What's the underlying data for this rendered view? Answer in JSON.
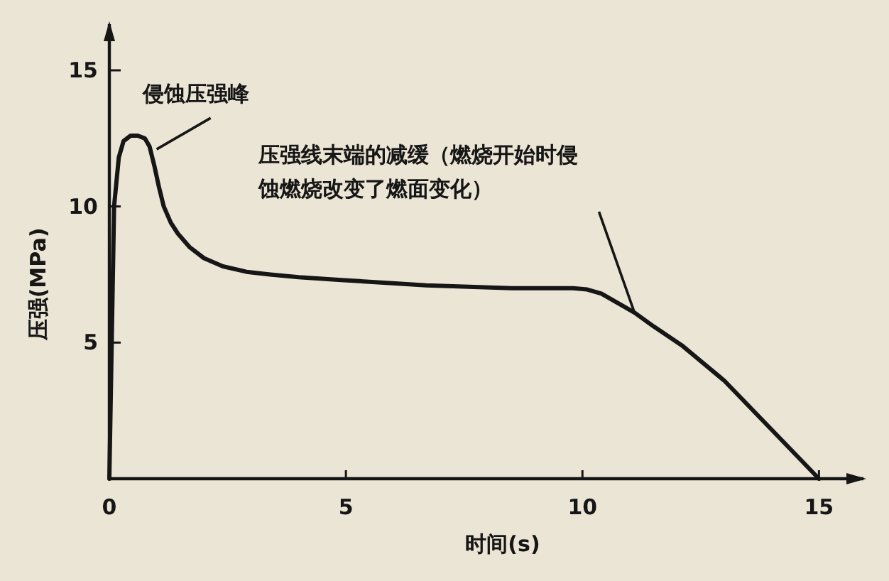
{
  "chart_data": {
    "type": "line",
    "xlabel": "时间(s)",
    "ylabel": "压强(MPa)",
    "xlim": [
      0,
      16
    ],
    "ylim": [
      0,
      16.8
    ],
    "xticks": [
      0,
      5,
      10,
      15
    ],
    "yticks": [
      {
        "value": 0,
        "label": null
      },
      5,
      10,
      15
    ],
    "grid": false,
    "marker": "none",
    "line_style": "solid",
    "x": [
      0,
      0.05,
      0.1,
      0.2,
      0.3,
      0.45,
      0.6,
      0.75,
      0.85,
      0.95,
      1.05,
      1.15,
      1.3,
      1.45,
      1.7,
      2.0,
      2.4,
      2.9,
      3.4,
      4.0,
      4.9,
      5.8,
      6.7,
      7.6,
      8.5,
      9.3,
      9.8,
      10.1,
      10.4,
      10.8,
      11.1,
      11.5,
      12.1,
      13.0,
      14.0,
      15.0
    ],
    "series": [
      {
        "color": "#161616",
        "values": [
          0,
          5,
          10,
          11.8,
          12.4,
          12.6,
          12.6,
          12.5,
          12.2,
          11.5,
          10.7,
          10.0,
          9.4,
          9.0,
          8.5,
          8.1,
          7.8,
          7.6,
          7.5,
          7.4,
          7.3,
          7.2,
          7.1,
          7.05,
          7.0,
          7.0,
          7.0,
          6.95,
          6.8,
          6.4,
          6.1,
          5.6,
          4.9,
          3.6,
          1.8,
          0
        ]
      }
    ],
    "annotations": [
      {
        "text": "侵蚀压强峰",
        "x": 1.0,
        "y": 12.1
      },
      {
        "text": "压强线末端的减缓（燃烧开始时侵蚀燃烧改变了燃面变化）",
        "x": 11.1,
        "y": 6.1
      }
    ]
  }
}
